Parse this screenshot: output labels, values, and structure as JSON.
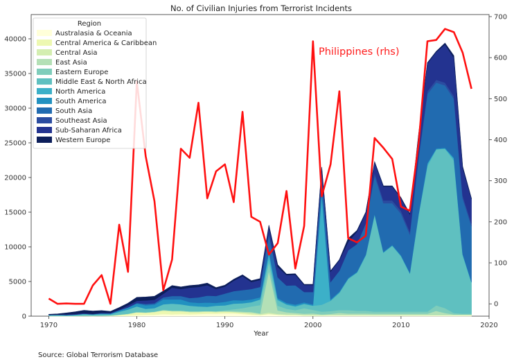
{
  "chart_data": {
    "type": "area",
    "stacked": true,
    "title": "No. of Civilian Injuries from Terrorist Incidents",
    "xlabel": "Year",
    "ylabel": "",
    "xlim": [
      1968,
      2020
    ],
    "ylim": [
      0,
      43500
    ],
    "y2lim": [
      -30,
      705
    ],
    "x_ticks": [
      1970,
      1980,
      1990,
      2000,
      2010,
      2020
    ],
    "y_ticks": [
      0,
      5000,
      10000,
      15000,
      20000,
      25000,
      30000,
      35000,
      40000
    ],
    "y2_ticks": [
      0,
      100,
      200,
      300,
      400,
      500,
      600,
      700
    ],
    "legend": {
      "title": "Region",
      "placement": "top-left"
    },
    "years": [
      1970,
      1971,
      1972,
      1973,
      1974,
      1975,
      1976,
      1977,
      1978,
      1979,
      1980,
      1981,
      1982,
      1983,
      1984,
      1985,
      1986,
      1987,
      1988,
      1989,
      1990,
      1991,
      1992,
      1993,
      1994,
      1995,
      1996,
      1997,
      1998,
      1999,
      2000,
      2001,
      2002,
      2003,
      2004,
      2005,
      2006,
      2007,
      2008,
      2009,
      2010,
      2011,
      2012,
      2013,
      2014,
      2015,
      2016,
      2017,
      2018
    ],
    "series": [
      {
        "name": "Australasia & Oceania",
        "color": "#ffffd9",
        "values": [
          20,
          10,
          10,
          20,
          30,
          20,
          40,
          20,
          80,
          100,
          150,
          200,
          200,
          300,
          250,
          300,
          250,
          300,
          350,
          350,
          400,
          400,
          300,
          200,
          150,
          300,
          200,
          150,
          150,
          100,
          100,
          100,
          120,
          120,
          120,
          120,
          120,
          120,
          120,
          120,
          120,
          120,
          120,
          120,
          120,
          120,
          120,
          120,
          120
        ]
      },
      {
        "name": "Central America & Caribbean",
        "color": "#edf8b1",
        "values": [
          0,
          0,
          0,
          0,
          0,
          0,
          0,
          50,
          100,
          200,
          400,
          300,
          400,
          500,
          450,
          400,
          350,
          300,
          300,
          250,
          250,
          200,
          150,
          100,
          50,
          30,
          20,
          20,
          20,
          10,
          10,
          10,
          10,
          10,
          10,
          10,
          10,
          10,
          10,
          10,
          10,
          10,
          10,
          10,
          10,
          10,
          10,
          10,
          10
        ]
      },
      {
        "name": "Central Asia",
        "color": "#d4eeb1",
        "values": [
          0,
          0,
          0,
          0,
          0,
          0,
          0,
          0,
          0,
          0,
          0,
          0,
          0,
          0,
          0,
          0,
          0,
          0,
          0,
          0,
          0,
          0,
          100,
          200,
          100,
          200,
          100,
          100,
          100,
          100,
          100,
          50,
          50,
          50,
          50,
          50,
          50,
          30,
          30,
          30,
          30,
          30,
          30,
          30,
          30,
          30,
          30,
          30,
          30
        ]
      },
      {
        "name": "East Asia",
        "color": "#b4e0b6",
        "values": [
          30,
          20,
          20,
          20,
          50,
          50,
          50,
          50,
          50,
          50,
          50,
          50,
          50,
          100,
          100,
          100,
          100,
          100,
          100,
          100,
          100,
          100,
          100,
          100,
          100,
          6000,
          500,
          300,
          200,
          150,
          200,
          100,
          150,
          300,
          200,
          200,
          200,
          200,
          200,
          200,
          200,
          200,
          200,
          200,
          600,
          300,
          100,
          100,
          100
        ]
      },
      {
        "name": "Eastern Europe",
        "color": "#7fcdbb",
        "values": [
          0,
          0,
          0,
          0,
          0,
          0,
          0,
          0,
          0,
          0,
          0,
          0,
          0,
          0,
          0,
          0,
          0,
          0,
          0,
          0,
          100,
          300,
          500,
          800,
          1200,
          1200,
          700,
          500,
          400,
          800,
          500,
          400,
          400,
          400,
          500,
          400,
          400,
          300,
          300,
          300,
          300,
          300,
          300,
          300,
          800,
          700,
          200,
          100,
          100
        ]
      },
      {
        "name": "Middle East & North Africa",
        "color": "#5fc0c0",
        "values": [
          100,
          150,
          100,
          150,
          200,
          150,
          200,
          150,
          400,
          600,
          800,
          500,
          500,
          800,
          1000,
          900,
          800,
          700,
          600,
          800,
          700,
          800,
          700,
          600,
          800,
          600,
          800,
          600,
          500,
          600,
          600,
          1000,
          1500,
          2500,
          4500,
          5500,
          8000,
          14000,
          8500,
          9500,
          8000,
          5500,
          14000,
          21000,
          22500,
          23000,
          22000,
          8500,
          4500
        ]
      },
      {
        "name": "North America",
        "color": "#3cb0c8",
        "values": [
          20,
          20,
          20,
          20,
          20,
          20,
          20,
          20,
          20,
          20,
          20,
          20,
          20,
          20,
          20,
          20,
          20,
          20,
          20,
          20,
          20,
          20,
          20,
          20,
          20,
          800,
          100,
          50,
          100,
          30,
          30,
          16000,
          50,
          30,
          30,
          30,
          30,
          30,
          30,
          30,
          30,
          30,
          30,
          300,
          30,
          30,
          300,
          30,
          30
        ]
      },
      {
        "name": "South America",
        "color": "#2291c0",
        "values": [
          0,
          0,
          20,
          20,
          50,
          50,
          100,
          100,
          200,
          300,
          400,
          500,
          500,
          700,
          600,
          700,
          500,
          500,
          600,
          400,
          500,
          500,
          400,
          400,
          300,
          300,
          200,
          200,
          200,
          200,
          150,
          150,
          150,
          150,
          100,
          100,
          100,
          100,
          100,
          100,
          100,
          100,
          100,
          100,
          100,
          100,
          100,
          100,
          100
        ]
      },
      {
        "name": "South Asia",
        "color": "#216bb0",
        "values": [
          0,
          0,
          0,
          0,
          0,
          0,
          0,
          0,
          0,
          0,
          100,
          200,
          200,
          300,
          500,
          500,
          600,
          800,
          1000,
          1000,
          1200,
          1300,
          1500,
          1500,
          1500,
          2500,
          3000,
          2500,
          2800,
          1500,
          1800,
          2500,
          2500,
          3000,
          4000,
          4000,
          4500,
          5500,
          7000,
          6000,
          6000,
          5500,
          8000,
          10000,
          9500,
          9000,
          8500,
          8000,
          8000
        ]
      },
      {
        "name": "Southeast Asia",
        "color": "#2b4ca0",
        "values": [
          0,
          0,
          0,
          0,
          0,
          0,
          0,
          0,
          0,
          0,
          0,
          0,
          0,
          0,
          0,
          0,
          0,
          0,
          0,
          0,
          0,
          0,
          0,
          0,
          0,
          0,
          0,
          0,
          0,
          0,
          0,
          0,
          0,
          0,
          0,
          0,
          0,
          400,
          400,
          400,
          400,
          400,
          400,
          400,
          400,
          400,
          400,
          400,
          400
        ]
      },
      {
        "name": "Sub-Saharan Africa",
        "color": "#233390",
        "values": [
          50,
          30,
          100,
          100,
          100,
          50,
          100,
          100,
          100,
          300,
          300,
          500,
          500,
          500,
          1200,
          1000,
          1500,
          1500,
          1500,
          1000,
          1000,
          1500,
          2000,
          1000,
          1000,
          1000,
          1500,
          1500,
          1500,
          1000,
          1000,
          1000,
          1500,
          1500,
          1200,
          1800,
          1500,
          1500,
          2000,
          2000,
          1800,
          2500,
          3000,
          4000,
          4000,
          5500,
          5500,
          4000,
          3500
        ]
      },
      {
        "name": "Western Europe",
        "color": "#0c1e5a",
        "values": [
          50,
          100,
          200,
          300,
          400,
          400,
          300,
          200,
          300,
          300,
          500,
          500,
          500,
          400,
          300,
          300,
          300,
          300,
          300,
          200,
          200,
          200,
          200,
          200,
          200,
          200,
          300,
          150,
          150,
          100,
          100,
          200,
          100,
          100,
          500,
          150,
          100,
          100,
          100,
          100,
          100,
          100,
          100,
          100,
          100,
          200,
          300,
          200,
          100
        ]
      }
    ],
    "rhs_series": {
      "name": "Philippines (rhs)",
      "color": "#ff1010",
      "values": [
        13,
        0,
        1,
        0,
        0,
        45,
        70,
        0,
        193,
        78,
        542,
        360,
        250,
        33,
        108,
        378,
        356,
        490,
        257,
        323,
        340,
        248,
        468,
        212,
        200,
        120,
        148,
        275,
        86,
        190,
        640,
        262,
        340,
        518,
        160,
        150,
        166,
        404,
        380,
        353,
        237,
        227,
        390,
        640,
        643,
        670,
        662,
        612,
        524
      ]
    },
    "annotation": "Philippines (rhs)",
    "source": "Source: Global Terrorism Database"
  }
}
